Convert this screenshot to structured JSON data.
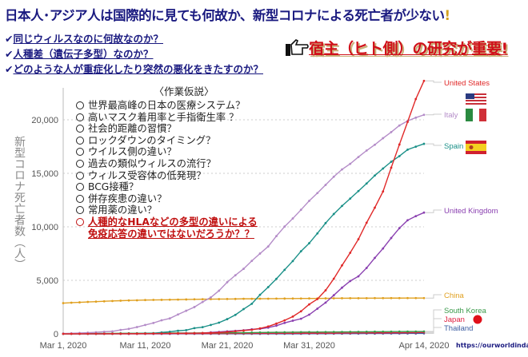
{
  "header": {
    "title": "日本人･アジア人は国際的に見ても何故か、新型コロナによる死亡者が少ない",
    "title_mark": "!",
    "questions": [
      "同じウィルスなのに何故なのか？",
      "人種差（遺伝子多型）なのか？",
      "どのような人が重症化したり突然の悪化をきたすのか？"
    ],
    "check_icon": "checkmark-icon",
    "key_icon": "pointing-hand-icon",
    "key_message": "宿主（ヒト側）の研究が重要!"
  },
  "hypotheses": {
    "heading": "〈作業仮説〉",
    "items": [
      "世界最高峰の日本の医療システム？",
      "高いマスク着用率と手指衛生率 ？",
      "社会的距離の習慣？",
      "ロックダウンのタイミング？",
      "ウイルス側の違い？",
      "過去の類似ウィルスの流行？",
      "ウィルス受容体の低発現？",
      "BCG接種？",
      "併存疾患の違い？",
      "常用薬の違い？"
    ],
    "highlight": [
      "人種的なHLAなどの多型の違いによる",
      "免疫応答の違いではないだろうか？？"
    ]
  },
  "source": "https://ourworldindata.org/",
  "chart_data": {
    "type": "line",
    "ylabel": "新型コロナ死亡者数（人）",
    "x_start": "2020-03-01",
    "x_end": "2020-04-14",
    "xticks": [
      "Mar 1, 2020",
      "Mar 11, 2020",
      "Mar 21, 2020",
      "Mar 31, 2020",
      "Apr 14, 2020"
    ],
    "yticks": [
      "0",
      "5,000",
      "10,000",
      "15,000",
      "20,000"
    ],
    "ylim": [
      0,
      24000
    ],
    "grid": true,
    "legend": "right (end labels)",
    "series": [
      {
        "name": "United States",
        "color": "#e02828",
        "flag": "us",
        "values": [
          0,
          0,
          1,
          1,
          6,
          9,
          11,
          12,
          15,
          19,
          22,
          26,
          30,
          38,
          41,
          48,
          58,
          73,
          95,
          121,
          171,
          239,
          309,
          374,
          509,
          689,
          957,
          1260,
          1614,
          2110,
          2754,
          3251,
          4066,
          5151,
          6394,
          7576,
          8839,
          10384,
          11793,
          13298,
          15526,
          17691,
          19802,
          21942,
          23640
        ]
      },
      {
        "name": "Italy",
        "color": "#b48cc8",
        "flag": "it",
        "values": [
          34,
          52,
          79,
          107,
          148,
          197,
          233,
          366,
          463,
          631,
          827,
          1016,
          1266,
          1441,
          1809,
          2158,
          2503,
          2978,
          3405,
          4032,
          4825,
          5476,
          6077,
          6820,
          7503,
          8165,
          9134,
          10023,
          10779,
          11591,
          12428,
          13155,
          13915,
          14681,
          15362,
          15887,
          16523,
          17127,
          17669,
          18279,
          18849,
          19468,
          19899,
          20200,
          20465
        ]
      },
      {
        "name": "Spain",
        "color": "#1a9088",
        "flag": "es",
        "values": [
          0,
          0,
          1,
          2,
          3,
          5,
          10,
          17,
          28,
          35,
          54,
          55,
          133,
          195,
          289,
          342,
          533,
          623,
          830,
          1043,
          1375,
          1772,
          2311,
          2808,
          3647,
          4365,
          5138,
          5982,
          6803,
          7716,
          8464,
          9387,
          10348,
          11198,
          11947,
          12641,
          13341,
          14045,
          14792,
          15447,
          16081,
          16606,
          17209,
          17489,
          17756
        ]
      },
      {
        "name": "United Kingdom",
        "color": "#8a40b0",
        "values": [
          0,
          0,
          0,
          0,
          0,
          1,
          2,
          3,
          4,
          6,
          8,
          8,
          8,
          10,
          21,
          56,
          56,
          72,
          138,
          178,
          234,
          282,
          336,
          423,
          466,
          580,
          761,
          1021,
          1228,
          1408,
          1789,
          2352,
          2921,
          3605,
          4313,
          4934,
          5373,
          6159,
          7097,
          7978,
          8958,
          9875,
          10612,
          11000,
          11329
        ]
      },
      {
        "name": "China",
        "color": "#e0a020",
        "values": [
          2870,
          2912,
          2943,
          2981,
          3012,
          3042,
          3070,
          3097,
          3119,
          3136,
          3158,
          3169,
          3176,
          3189,
          3199,
          3213,
          3226,
          3237,
          3245,
          3249,
          3253,
          3259,
          3274,
          3274,
          3281,
          3285,
          3291,
          3296,
          3299,
          3304,
          3308,
          3309,
          3316,
          3322,
          3326,
          3330,
          3331,
          3333,
          3335,
          3336,
          3339,
          3340,
          3341,
          3341,
          3341
        ]
      },
      {
        "name": "South Korea",
        "color": "#3a9a4a",
        "values": [
          17,
          22,
          28,
          32,
          35,
          42,
          44,
          50,
          53,
          54,
          60,
          66,
          67,
          72,
          75,
          75,
          81,
          84,
          91,
          94,
          102,
          104,
          111,
          120,
          126,
          131,
          139,
          144,
          152,
          158,
          162,
          165,
          169,
          174,
          177,
          183,
          186,
          192,
          200,
          204,
          208,
          211,
          214,
          217,
          222
        ]
      },
      {
        "name": "Japan",
        "color": "#e02040",
        "flag": "jp",
        "values": [
          6,
          6,
          6,
          6,
          6,
          6,
          6,
          6,
          7,
          10,
          15,
          16,
          19,
          22,
          22,
          27,
          29,
          29,
          29,
          33,
          35,
          41,
          42,
          43,
          45,
          47,
          49,
          52,
          54,
          54,
          56,
          57,
          62,
          63,
          77,
          77,
          85,
          92,
          93,
          94,
          99,
          99,
          108,
          118,
          136
        ]
      },
      {
        "name": "Thailand",
        "color": "#3a5ba0",
        "values": [
          1,
          1,
          1,
          1,
          1,
          1,
          1,
          1,
          1,
          1,
          1,
          1,
          1,
          1,
          1,
          1,
          1,
          1,
          1,
          1,
          1,
          1,
          1,
          1,
          4,
          5,
          6,
          7,
          9,
          10,
          12,
          15,
          19,
          20,
          23,
          26,
          27,
          30,
          32,
          33,
          35,
          38,
          40,
          41,
          47
        ]
      }
    ]
  }
}
